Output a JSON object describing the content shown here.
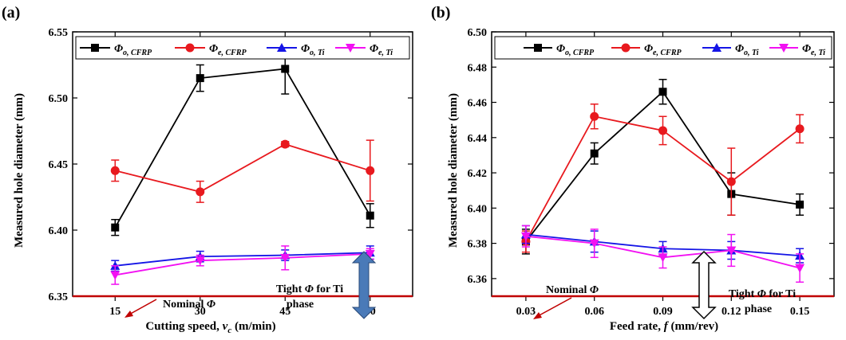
{
  "chart_data": [
    {
      "type": "line",
      "panel_label": "(a)",
      "xlabel_main": "Cutting speed, ",
      "xlabel_var": "v",
      "xlabel_sub": "c",
      "xlabel_unit": " (m/min)",
      "ylabel": "Measured hole diameter (mm)",
      "ylim": [
        6.35,
        6.55
      ],
      "yticks": [
        "6.35",
        "6.40",
        "6.45",
        "6.50",
        "6.55"
      ],
      "xlim": [
        7.5,
        67.5
      ],
      "x": [
        15,
        30,
        45,
        60
      ],
      "xtick_labels": [
        "15",
        "30",
        "45",
        "60"
      ],
      "legend_position": "top",
      "series": [
        {
          "name": "Φ",
          "sub": "o, CFRP",
          "color": "#000000",
          "marker": "square",
          "values": [
            6.402,
            6.515,
            6.522,
            6.411
          ],
          "errors": [
            0.006,
            0.01,
            0.019,
            0.009
          ]
        },
        {
          "name": "Φ",
          "sub": "e, CFRP",
          "color": "#e8191e",
          "marker": "circle",
          "values": [
            6.445,
            6.429,
            6.465,
            6.445
          ],
          "errors": [
            0.008,
            0.008,
            0.002,
            0.023
          ]
        },
        {
          "name": "Φ",
          "sub": "o, Ti",
          "color": "#1515e6",
          "marker": "triangle-up",
          "values": [
            6.373,
            6.38,
            6.381,
            6.383
          ],
          "errors": [
            0.004,
            0.004,
            0.004,
            0.005
          ]
        },
        {
          "name": "Φ",
          "sub": "e, Ti",
          "color": "#f210f2",
          "marker": "triangle-down",
          "values": [
            6.366,
            6.377,
            6.379,
            6.382
          ],
          "errors": [
            0.007,
            0.004,
            0.009,
            0.004
          ]
        }
      ],
      "annotations": {
        "nominal_prefix": "Nominal ",
        "nominal_symbol": "Φ",
        "tight_line1_prefix": "Tight ",
        "tight_line1_symbol": "Φ",
        "tight_line1_suffix": " for Ti",
        "tight_line2": "phase"
      },
      "colors": {
        "nominal_line": "#c00000",
        "arrow_fill": "#4a7ab8"
      }
    },
    {
      "type": "line",
      "panel_label": "(b)",
      "xlabel_main": "Feed rate, ",
      "xlabel_var": "f",
      "xlabel_sub": "",
      "xlabel_unit": " (mm/rev)",
      "ylabel": "Measured hole diameter (mm)",
      "ylim": [
        6.35,
        6.5
      ],
      "yticks": [
        "6.36",
        "6.38",
        "6.40",
        "6.42",
        "6.44",
        "6.46",
        "6.48",
        "6.50"
      ],
      "xlim": [
        0.015,
        0.165
      ],
      "x": [
        0.03,
        0.06,
        0.09,
        0.12,
        0.15
      ],
      "xtick_labels": [
        "0.03",
        "0.06",
        "0.09",
        "0.12",
        "0.15"
      ],
      "legend_position": "top",
      "series": [
        {
          "name": "Φ",
          "sub": "o, CFRP",
          "color": "#000000",
          "marker": "square",
          "values": [
            6.381,
            6.431,
            6.466,
            6.408,
            6.402
          ],
          "errors": [
            0.007,
            0.006,
            0.007,
            0.012,
            0.006
          ]
        },
        {
          "name": "Φ",
          "sub": "e, CFRP",
          "color": "#e8191e",
          "marker": "circle",
          "values": [
            6.381,
            6.452,
            6.444,
            6.415,
            6.445
          ],
          "errors": [
            0.006,
            0.007,
            0.008,
            0.019,
            0.008
          ]
        },
        {
          "name": "Φ",
          "sub": "o, Ti",
          "color": "#1515e6",
          "marker": "triangle-up",
          "values": [
            6.385,
            6.381,
            6.377,
            6.376,
            6.373
          ],
          "errors": [
            0.005,
            0.006,
            0.004,
            0.005,
            0.004
          ]
        },
        {
          "name": "Φ",
          "sub": "e, Ti",
          "color": "#f210f2",
          "marker": "triangle-down",
          "values": [
            6.384,
            6.38,
            6.372,
            6.376,
            6.366
          ],
          "errors": [
            0.006,
            0.008,
            0.006,
            0.009,
            0.008
          ]
        }
      ],
      "annotations": {
        "nominal_prefix": "Nominal ",
        "nominal_symbol": "Φ",
        "tight_line1_prefix": "Tight ",
        "tight_line1_symbol": "Φ",
        "tight_line1_suffix": " for Ti",
        "tight_line2": "phase"
      },
      "colors": {
        "nominal_line": "#c00000",
        "arrow_fill": "#4a7ab8"
      }
    }
  ]
}
